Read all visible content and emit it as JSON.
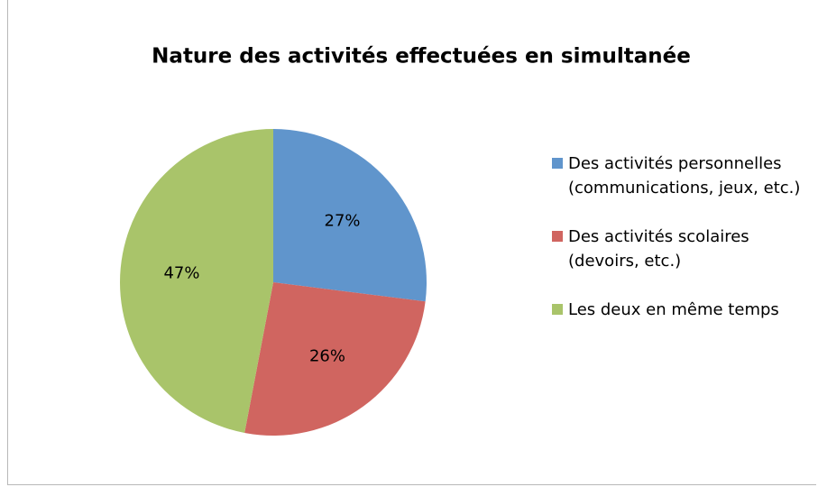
{
  "chart_data": {
    "type": "pie",
    "title": "Nature des activités effectuées en simultanée",
    "categories": [
      "Des activités personnelles (communications, jeux, etc.)",
      "Des activités scolaires (devoirs, etc.)",
      "Les deux en même temps"
    ],
    "values": [
      27,
      26,
      47
    ],
    "value_labels": [
      "27%",
      "26%",
      "47%"
    ],
    "colors": [
      "#6095cc",
      "#d06560",
      "#a9c46a"
    ],
    "legend": "right"
  }
}
